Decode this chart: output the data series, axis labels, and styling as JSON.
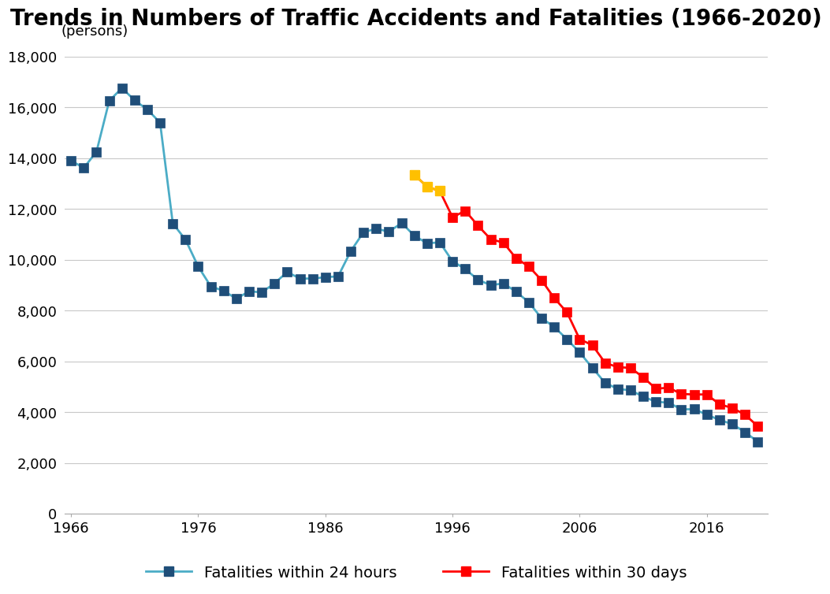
{
  "title": "Trends in Numbers of Traffic Accidents and Fatalities (1966-2020)",
  "ylabel": "(persons)",
  "ylim": [
    0,
    18000
  ],
  "yticks": [
    0,
    2000,
    4000,
    6000,
    8000,
    10000,
    12000,
    14000,
    16000,
    18000
  ],
  "xlim": [
    1965.5,
    2020.8
  ],
  "xticks": [
    1966,
    1976,
    1986,
    1996,
    2006,
    2016
  ],
  "background_color": "#ffffff",
  "grid_color": "#c8c8c8",
  "fatalities_24h": {
    "years": [
      1966,
      1967,
      1968,
      1969,
      1970,
      1971,
      1972,
      1973,
      1974,
      1975,
      1976,
      1977,
      1978,
      1979,
      1980,
      1981,
      1982,
      1983,
      1984,
      1985,
      1986,
      1987,
      1988,
      1989,
      1990,
      1991,
      1992,
      1993,
      1994,
      1995,
      1996,
      1997,
      1998,
      1999,
      2000,
      2001,
      2002,
      2003,
      2004,
      2005,
      2006,
      2007,
      2008,
      2009,
      2010,
      2011,
      2012,
      2013,
      2014,
      2015,
      2016,
      2017,
      2018,
      2019,
      2020
    ],
    "values": [
      13904,
      13618,
      14256,
      16257,
      16765,
      16278,
      15918,
      15400,
      11432,
      10792,
      9734,
      8945,
      8783,
      8466,
      8760,
      8719,
      9073,
      9520,
      9262,
      9261,
      9317,
      9347,
      10344,
      11086,
      11227,
      11105,
      11451,
      10945,
      10653,
      10684,
      9942,
      9640,
      9211,
      9006,
      9066,
      8747,
      8326,
      7702,
      7358,
      6871,
      6352,
      5744,
      5155,
      4914,
      4863,
      4612,
      4411,
      4373,
      4113,
      4117,
      3904,
      3694,
      3532,
      3215,
      2839
    ],
    "line_color": "#4bacc6",
    "marker_facecolor": "#1f4e79",
    "marker_edgecolor": "#1f4e79",
    "marker": "s",
    "markersize": 8,
    "linewidth": 2.0,
    "label": "Fatalities within 24 hours"
  },
  "fatalities_30d": {
    "years": [
      1993,
      1994,
      1995,
      1996,
      1997,
      1998,
      1999,
      2000,
      2001,
      2002,
      2003,
      2004,
      2005,
      2006,
      2007,
      2008,
      2009,
      2010,
      2011,
      2012,
      2013,
      2014,
      2015,
      2016,
      2017,
      2018,
      2019,
      2020
    ],
    "values": [
      13346,
      12879,
      12708,
      11674,
      11931,
      11346,
      10813,
      10677,
      10060,
      9737,
      9200,
      8492,
      7933,
      6873,
      6639,
      5944,
      5772,
      5745,
      5373,
      4922,
      4966,
      4717,
      4698,
      4698,
      4311,
      4166,
      3904,
      3449
    ],
    "line_color": "#ff0000",
    "marker_facecolor": "#ff0000",
    "marker_edgecolor": "#ff0000",
    "marker": "s",
    "markersize": 8,
    "linewidth": 2.0,
    "label": "Fatalities within 30 days"
  },
  "yellow_segment_years": [
    1993,
    1994,
    1995
  ],
  "yellow_color": "#ffc000",
  "legend_fontsize": 14,
  "title_fontsize": 20,
  "tick_fontsize": 13
}
